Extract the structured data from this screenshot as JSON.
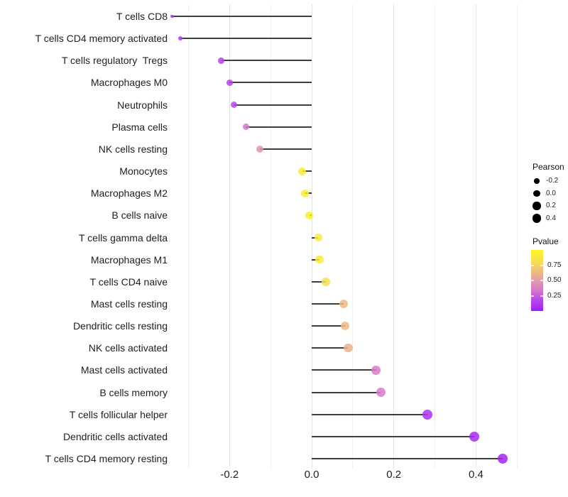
{
  "chart_data": {
    "type": "scatter",
    "subtype": "horizontal-lollipop",
    "title": "",
    "xlabel": "",
    "ylabel": "",
    "x_tick_labels": [
      "-0.2",
      "0.0",
      "0.2",
      "0.4"
    ],
    "x_tick_values": [
      -0.2,
      0.0,
      0.2,
      0.4
    ],
    "xlim": [
      -0.35,
      0.51
    ],
    "grid_values": [
      -0.3,
      -0.2,
      -0.1,
      0.0,
      0.1,
      0.2,
      0.3,
      0.4,
      0.5
    ],
    "baseline": 0.0,
    "grid_on": true,
    "legend_position": "right",
    "points": [
      {
        "label": "T cells CD8",
        "pearson": -0.34,
        "pvalue": 0.1
      },
      {
        "label": "T cells CD4 memory activated",
        "pearson": -0.32,
        "pvalue": 0.1
      },
      {
        "label": "T cells regulatory  Tregs",
        "pearson": -0.22,
        "pvalue": 0.16
      },
      {
        "label": "Macrophages M0",
        "pearson": -0.2,
        "pvalue": 0.16
      },
      {
        "label": "Neutrophils",
        "pearson": -0.19,
        "pvalue": 0.18
      },
      {
        "label": "Plasma cells",
        "pearson": -0.16,
        "pvalue": 0.33
      },
      {
        "label": "NK cells resting",
        "pearson": -0.126,
        "pvalue": 0.48
      },
      {
        "label": "Monocytes",
        "pearson": -0.023,
        "pvalue": 0.92
      },
      {
        "label": "Macrophages M2",
        "pearson": -0.017,
        "pvalue": 0.92
      },
      {
        "label": "B cells naive",
        "pearson": -0.006,
        "pvalue": 0.95
      },
      {
        "label": "T cells gamma delta",
        "pearson": 0.016,
        "pvalue": 0.92
      },
      {
        "label": "Macrophages M1",
        "pearson": 0.019,
        "pvalue": 0.9
      },
      {
        "label": "T cells CD4 naive",
        "pearson": 0.035,
        "pvalue": 0.82
      },
      {
        "label": "Mast cells resting",
        "pearson": 0.078,
        "pvalue": 0.63
      },
      {
        "label": "Dendritic cells resting",
        "pearson": 0.082,
        "pvalue": 0.63
      },
      {
        "label": "NK cells activated",
        "pearson": 0.089,
        "pvalue": 0.6
      },
      {
        "label": "Mast cells activated",
        "pearson": 0.157,
        "pvalue": 0.36
      },
      {
        "label": "B cells memory",
        "pearson": 0.168,
        "pvalue": 0.35
      },
      {
        "label": "T cells follicular helper",
        "pearson": 0.282,
        "pvalue": 0.08
      },
      {
        "label": "Dendritic cells activated",
        "pearson": 0.396,
        "pvalue": 0.05
      },
      {
        "label": "T cells CD4 memory resting",
        "pearson": 0.465,
        "pvalue": 0.03
      }
    ],
    "legend_size": {
      "title": "Pearson",
      "values": [
        -0.2,
        0.0,
        0.2,
        0.4
      ],
      "labels": [
        "-0.2",
        "0.0",
        "0.2",
        "0.4"
      ]
    },
    "legend_color": {
      "title": "Pvalue",
      "tick_labels": [
        "0.75",
        "0.50",
        "0.25"
      ],
      "tick_values": [
        0.75,
        0.5,
        0.25
      ],
      "range": [
        0,
        1
      ]
    },
    "colors": {
      "background": "#FFFFFF",
      "stem": "#3E3E3E",
      "grid_major": "#E4E4E4",
      "grid_minor": "#F0F0F0",
      "axis_text": "#212121",
      "legend_dot": "#000000",
      "pvalue_gradient": [
        [
          0.0,
          "#A21EF8"
        ],
        [
          0.2,
          "#BC4EE8"
        ],
        [
          0.35,
          "#D77BC8"
        ],
        [
          0.5,
          "#E49BAB"
        ],
        [
          0.65,
          "#EFBE7E"
        ],
        [
          0.8,
          "#F6DE52"
        ],
        [
          1.0,
          "#FBF722"
        ]
      ]
    }
  }
}
